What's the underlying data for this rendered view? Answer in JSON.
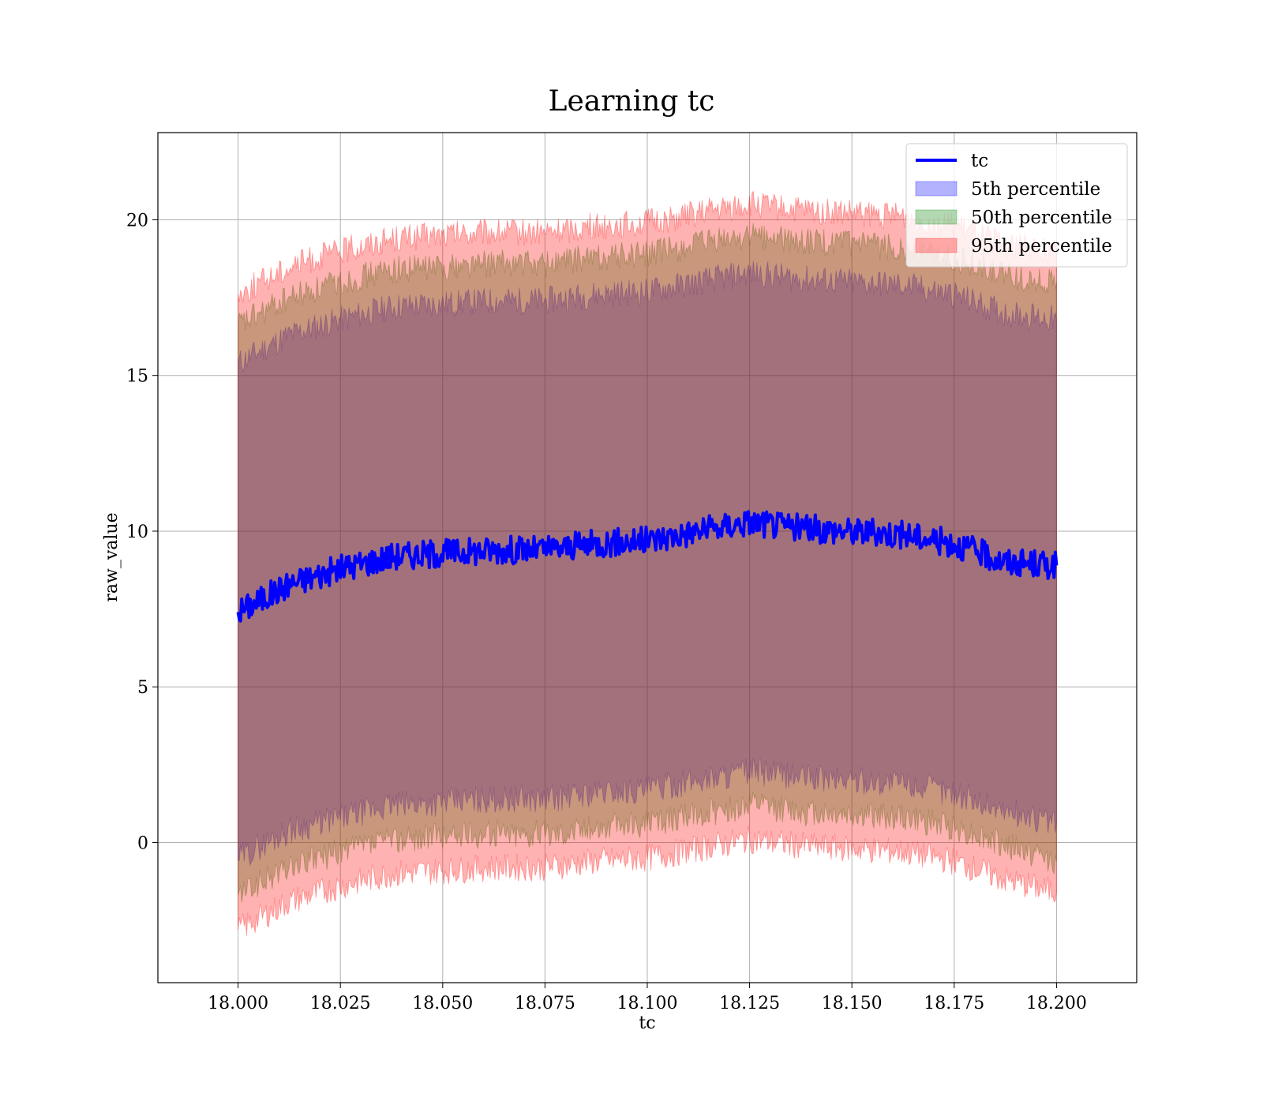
{
  "chart_data": {
    "type": "line",
    "title": "Learning tc",
    "xlabel": "tc",
    "ylabel": "raw_value",
    "xlim": [
      17.9804,
      18.2196
    ],
    "ylim": [
      -4.5,
      22.8
    ],
    "xticks": [
      18.0,
      18.025,
      18.05,
      18.075,
      18.1,
      18.125,
      18.15,
      18.175,
      18.2
    ],
    "xtick_labels": [
      "18.000",
      "18.025",
      "18.050",
      "18.075",
      "18.100",
      "18.125",
      "18.150",
      "18.175",
      "18.200"
    ],
    "yticks": [
      0,
      5,
      10,
      15,
      20
    ],
    "ytick_labels": [
      "0",
      "5",
      "10",
      "15",
      "20"
    ],
    "grid": true,
    "legend_position": "upper right",
    "x": [
      18.0,
      18.0125,
      18.025,
      18.0375,
      18.05,
      18.0625,
      18.075,
      18.0875,
      18.1,
      18.1125,
      18.125,
      18.1375,
      18.15,
      18.1625,
      18.175,
      18.1875,
      18.2
    ],
    "series": [
      {
        "name": "tc",
        "kind": "line",
        "color": "#0000ff",
        "values": [
          7.4,
          8.3,
          8.8,
          9.2,
          9.3,
          9.4,
          9.4,
          9.6,
          9.7,
          10.0,
          10.3,
          10.1,
          10.0,
          9.9,
          9.6,
          9.0,
          8.9
        ]
      },
      {
        "name": "5th percentile",
        "kind": "band",
        "color": "#0000ff",
        "lower": [
          -0.5,
          0.4,
          0.8,
          1.2,
          1.3,
          1.4,
          1.4,
          1.6,
          1.7,
          2.0,
          2.3,
          2.1,
          2.0,
          1.9,
          1.6,
          1.0,
          0.6
        ],
        "upper": [
          15.4,
          16.3,
          16.8,
          17.2,
          17.3,
          17.4,
          17.4,
          17.6,
          17.7,
          18.0,
          18.3,
          18.1,
          18.0,
          17.9,
          17.6,
          17.0,
          16.8
        ]
      },
      {
        "name": "50th percentile",
        "kind": "band",
        "color": "#008000",
        "lower": [
          -1.7,
          -0.8,
          -0.3,
          0.1,
          0.2,
          0.3,
          0.3,
          0.5,
          0.6,
          0.9,
          1.2,
          1.0,
          0.9,
          0.8,
          0.5,
          -0.1,
          -0.6
        ],
        "upper": [
          16.6,
          17.5,
          18.0,
          18.4,
          18.5,
          18.6,
          18.6,
          18.8,
          18.9,
          19.2,
          19.5,
          19.3,
          19.2,
          19.1,
          18.8,
          18.2,
          18.0
        ]
      },
      {
        "name": "95th percentile",
        "kind": "band",
        "color": "#ff0000",
        "lower": [
          -2.8,
          -1.9,
          -1.4,
          -1.0,
          -0.9,
          -0.8,
          -0.8,
          -0.6,
          -0.5,
          -0.2,
          0.1,
          -0.1,
          -0.2,
          -0.3,
          -0.6,
          -1.2,
          -1.6
        ],
        "upper": [
          17.6,
          18.5,
          19.0,
          19.4,
          19.5,
          19.6,
          19.6,
          19.8,
          19.9,
          20.2,
          20.5,
          20.3,
          20.2,
          20.1,
          19.8,
          19.2,
          19.0
        ]
      }
    ]
  }
}
